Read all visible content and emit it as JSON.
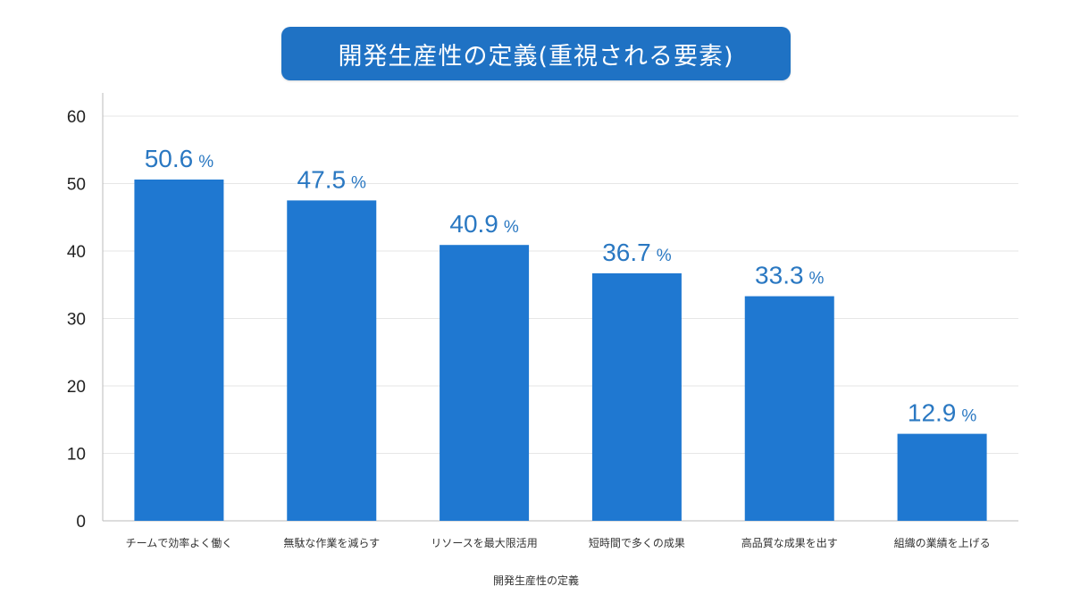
{
  "title": "開発生産性の定義(重視される要素)",
  "chart_data": {
    "type": "bar",
    "title": "開発生産性の定義(重視される要素)",
    "xlabel": "開発生産性の定義",
    "ylabel": "",
    "ylim": [
      0,
      60
    ],
    "yticks": [
      0,
      10,
      20,
      30,
      40,
      50,
      60
    ],
    "grid": true,
    "bar_color": "#1f78d1",
    "unit": "%",
    "categories": [
      "チームで効率よく働く",
      "無駄な作業を減らす",
      "リソースを最大限活用",
      "短時間で多くの成果",
      "高品質な成果を出す",
      "組織の業績を上げる"
    ],
    "values": [
      50.6,
      47.5,
      40.9,
      36.7,
      33.3,
      12.9
    ],
    "value_labels": [
      "50.6",
      "47.5",
      "40.9",
      "36.7",
      "33.3",
      "12.9"
    ]
  }
}
